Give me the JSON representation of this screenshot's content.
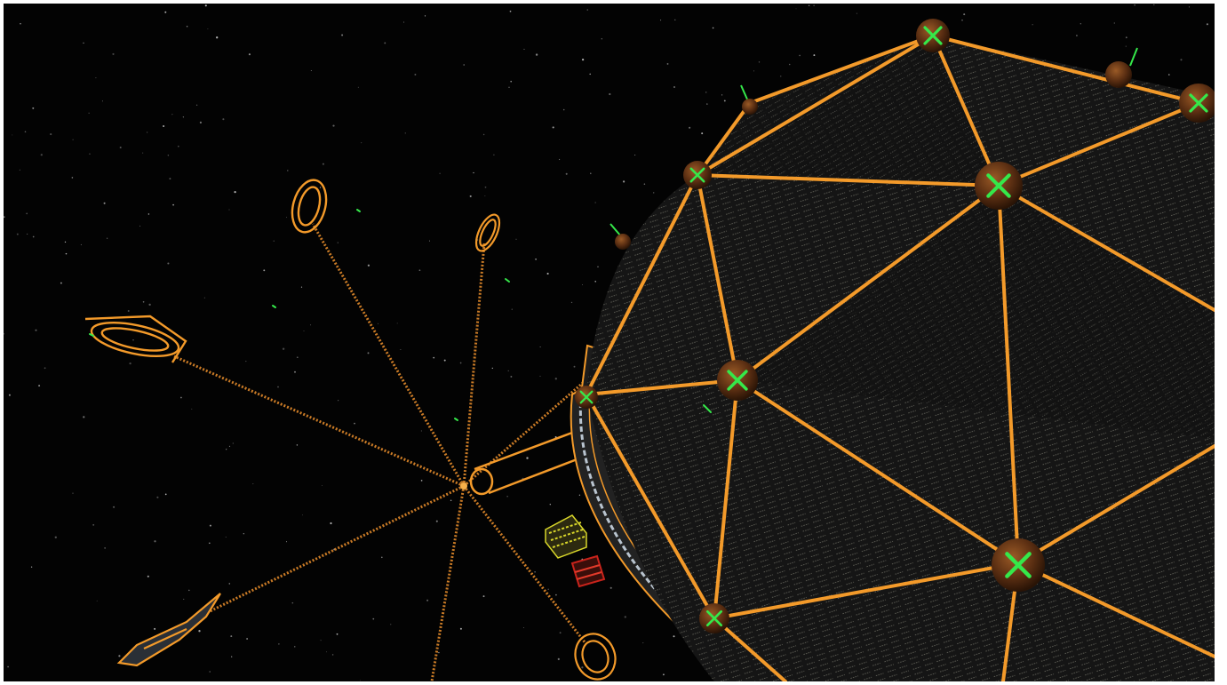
{
  "scene": {
    "kind": "3D space station wireframe render",
    "background_color": "#030303",
    "accent_colors": {
      "beam_orange": "#f39a2a",
      "node_brown": "#5a2e12",
      "marker_green": "#35e84a",
      "panel_dark": "#1b1b1b",
      "caution_yellow": "#d8d62a",
      "warning_red": "#c8231b"
    },
    "objects": [
      "geodesic-dome-station",
      "hub-with-spokes",
      "ring-modules",
      "docking-arm",
      "cargo-containers",
      "node-markers"
    ]
  }
}
